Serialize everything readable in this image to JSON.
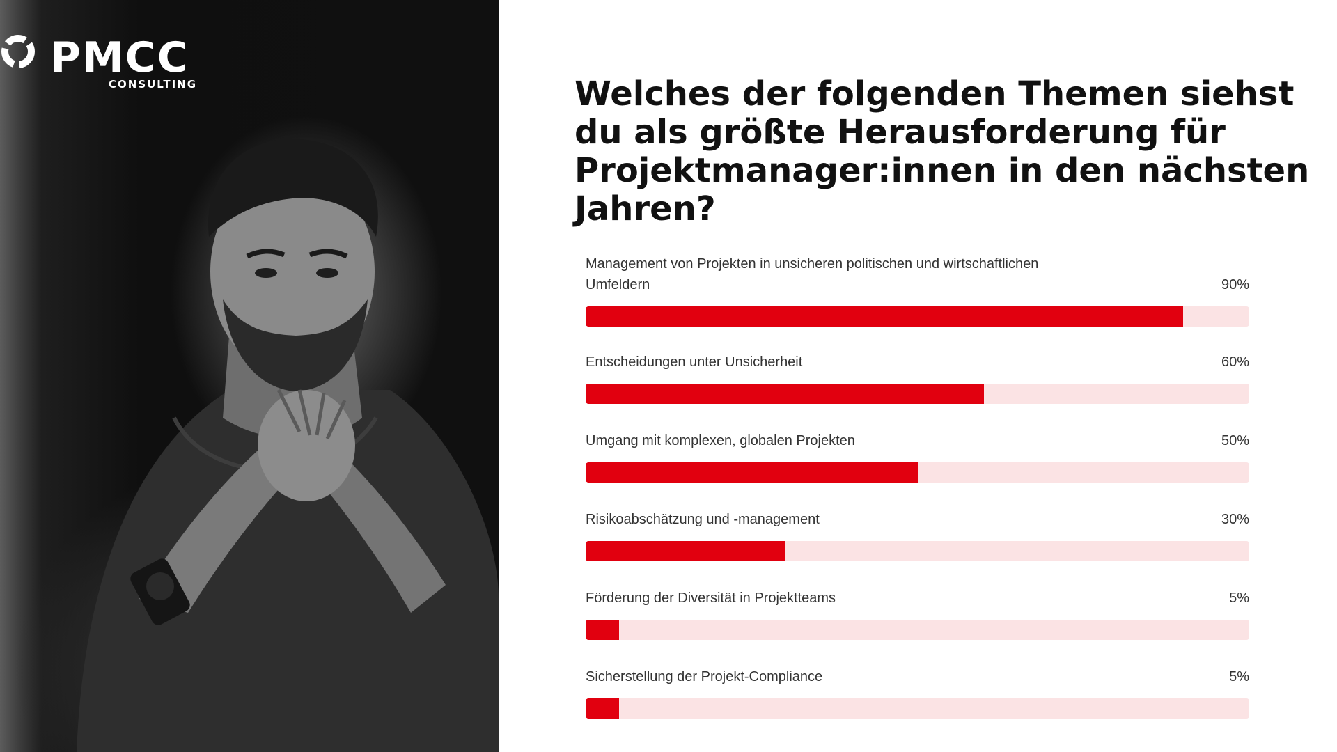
{
  "brand": {
    "name": "PMCC",
    "tagline": "CONSULTING"
  },
  "question": "Welches der folgenden Themen siehst du als größte Herausforderung für Projektmanager:innen in den nächsten Jahren?",
  "colors": {
    "bar_fill": "#e1000f",
    "bar_track": "#fbe3e4",
    "text": "#333333",
    "heading": "#111111"
  },
  "chart_data": {
    "type": "bar",
    "orientation": "horizontal",
    "title": "Welches der folgenden Themen siehst du als größte Herausforderung für Projektmanager:innen in den nächsten Jahren?",
    "categories": [
      "Management von Projekten in unsicheren politischen und wirtschaftlichen Umfeldern",
      "Entscheidungen unter Unsicherheit",
      "Umgang mit komplexen, globalen Projekten",
      "Risikoabschätzung und -management",
      "Förderung der Diversität in Projektteams",
      "Sicherstellung der Projekt-Compliance"
    ],
    "values": [
      90,
      60,
      50,
      30,
      5,
      5
    ],
    "value_labels": [
      "90%",
      "60%",
      "50%",
      "30%",
      "5%",
      "5%"
    ],
    "xlim": [
      0,
      100
    ],
    "unit": "%",
    "grid": false,
    "legend": "none"
  }
}
